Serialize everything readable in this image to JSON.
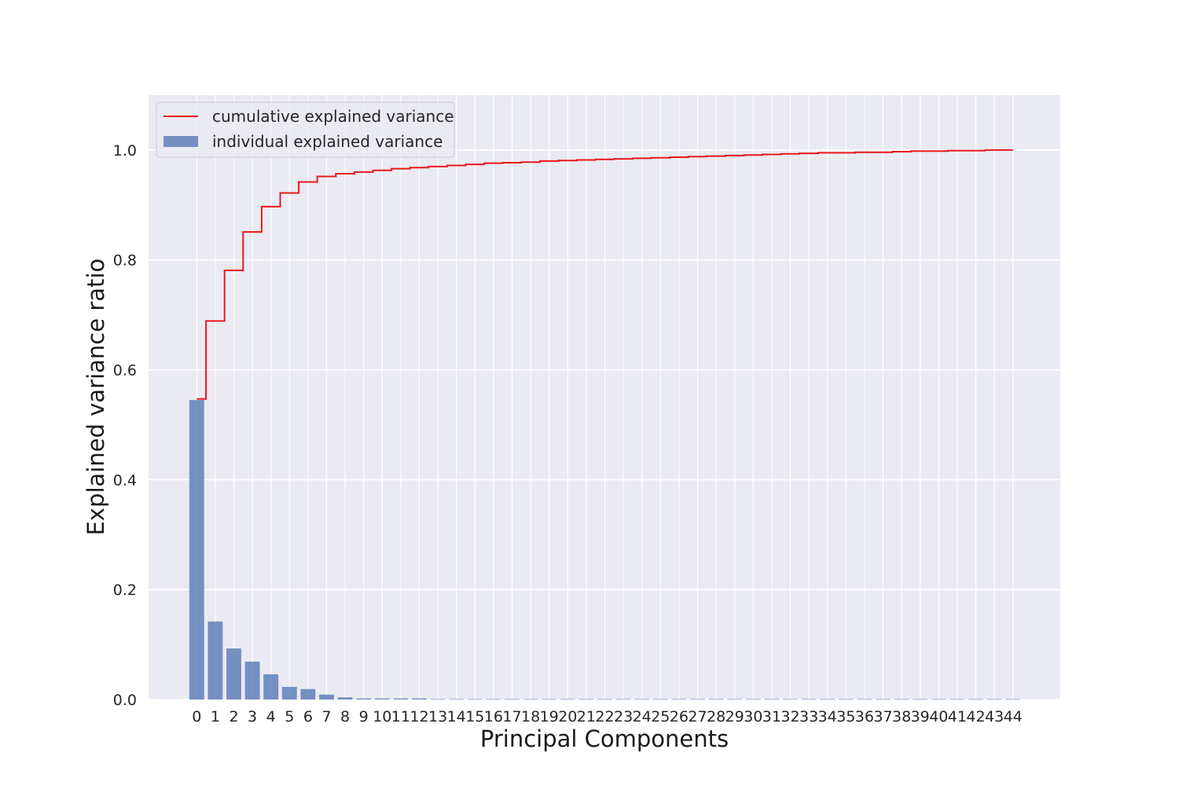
{
  "chart_data": {
    "type": "bar",
    "title": "",
    "xlabel": "Principal Components",
    "ylabel": "Explained variance ratio",
    "ylim": [
      0,
      1.1
    ],
    "yticks": [
      "0.0",
      "0.2",
      "0.4",
      "0.6",
      "0.8",
      "1.0"
    ],
    "grid": true,
    "legend_position": "top-left",
    "categories": [
      "0",
      "1",
      "2",
      "3",
      "4",
      "5",
      "6",
      "7",
      "8",
      "9",
      "10",
      "11",
      "12",
      "13",
      "14",
      "15",
      "16",
      "17",
      "18",
      "19",
      "20",
      "21",
      "22",
      "23",
      "24",
      "25",
      "26",
      "27",
      "28",
      "29",
      "30",
      "31",
      "32",
      "33",
      "34",
      "35",
      "36",
      "37",
      "38",
      "39",
      "40",
      "41",
      "42",
      "43",
      "44"
    ],
    "series": [
      {
        "name": "individual explained variance",
        "kind": "bar",
        "color": "#4c72b0",
        "values": [
          0.545,
          0.142,
          0.093,
          0.069,
          0.046,
          0.023,
          0.019,
          0.009,
          0.004,
          0.002,
          0.002,
          0.002,
          0.002,
          0.001,
          0.001,
          0.001,
          0.001,
          0.001,
          0.001,
          0.001,
          0.001,
          0.001,
          0.001,
          0.001,
          0.001,
          0.001,
          0.001,
          0.001,
          0.001,
          0.001,
          0.001,
          0.001,
          0.001,
          0.001,
          0.001,
          0.001,
          0.001,
          0.001,
          0.001,
          0.001,
          0.001,
          0.001,
          0.001,
          0.001,
          0.001
        ]
      },
      {
        "name": "cumulative explained variance",
        "kind": "step",
        "color": "#e8191c",
        "values": [
          0.547,
          0.689,
          0.781,
          0.851,
          0.897,
          0.922,
          0.942,
          0.952,
          0.957,
          0.96,
          0.963,
          0.966,
          0.968,
          0.97,
          0.972,
          0.974,
          0.976,
          0.977,
          0.978,
          0.98,
          0.981,
          0.982,
          0.983,
          0.984,
          0.985,
          0.986,
          0.987,
          0.988,
          0.989,
          0.99,
          0.991,
          0.992,
          0.993,
          0.994,
          0.995,
          0.995,
          0.996,
          0.996,
          0.997,
          0.998,
          0.998,
          0.999,
          0.999,
          1.0,
          1.0
        ]
      }
    ]
  }
}
